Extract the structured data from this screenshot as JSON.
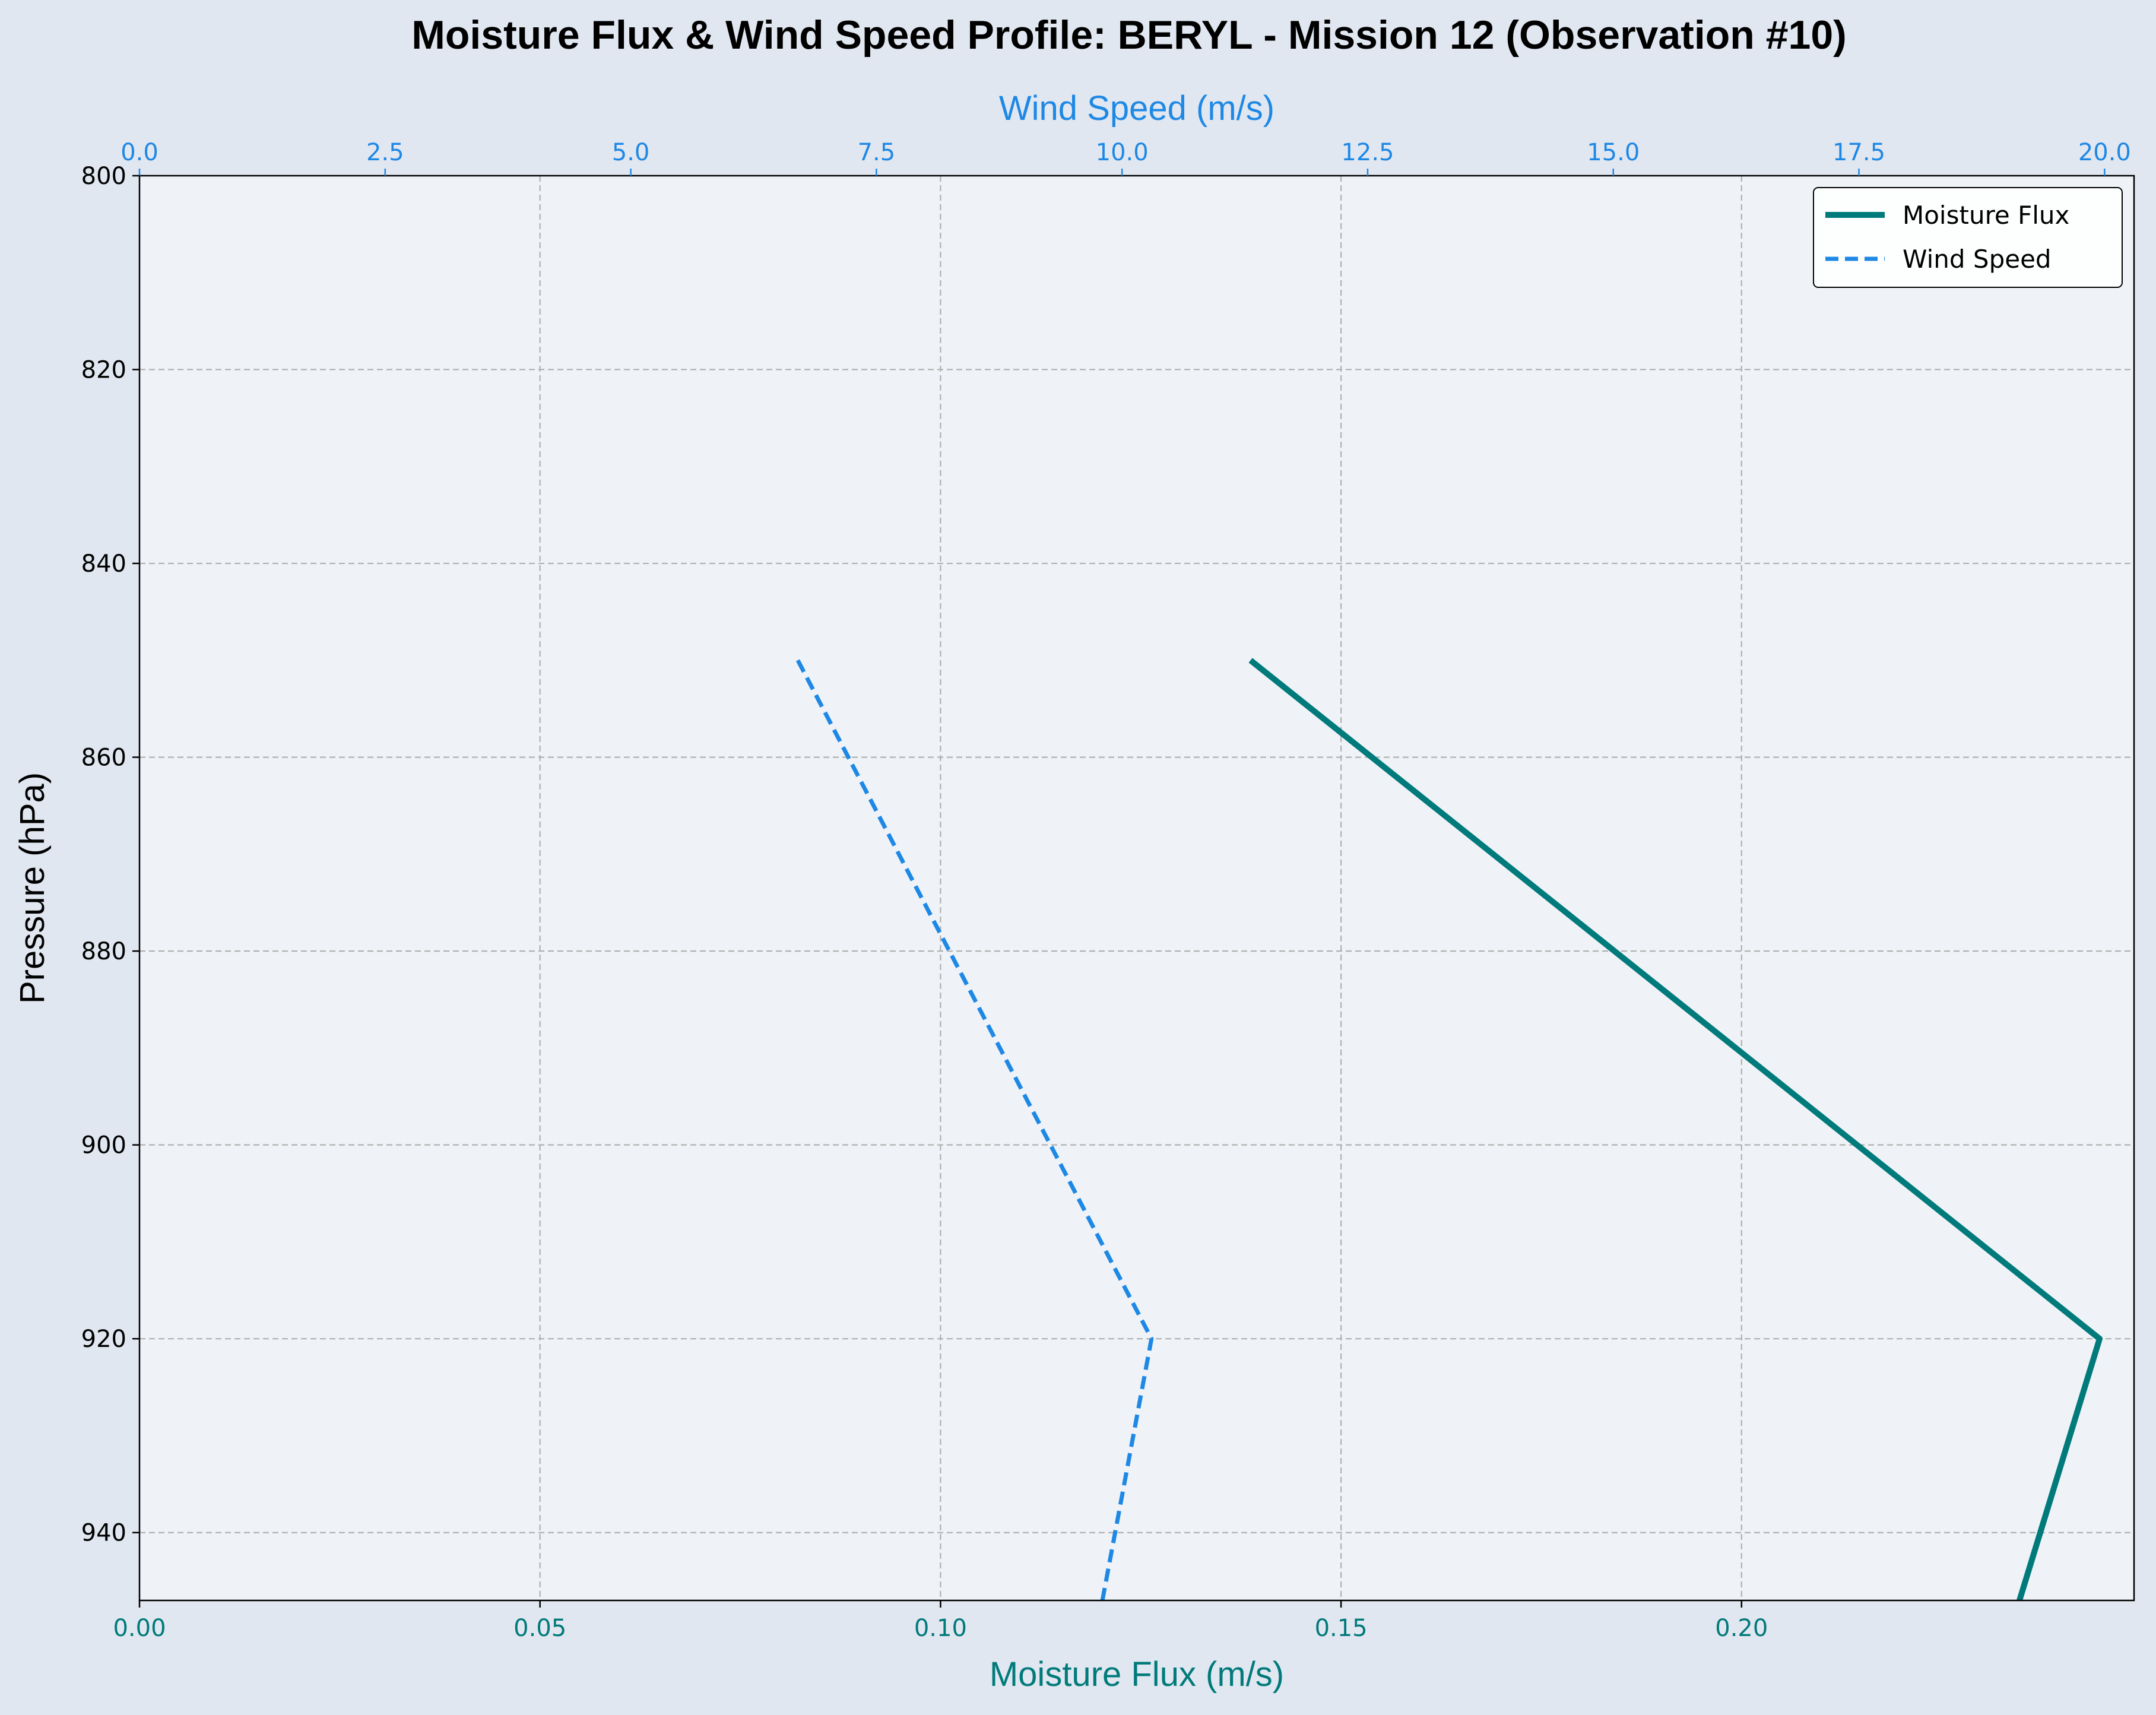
{
  "chart_data": {
    "type": "line",
    "title": "Moisture Flux & Wind Speed Profile: BERYL - Mission 12 (Observation #10)",
    "xlabel_bottom": "Moisture Flux (m/s)",
    "xlabel_top": "Wind Speed (m/s)",
    "ylabel": "Pressure (hPa)",
    "xlim_bottom": [
      0,
      0.249
    ],
    "xlim_top": [
      0,
      20.3
    ],
    "ylim": [
      800,
      947
    ],
    "y_inverted": true,
    "grid": true,
    "legend_position": "upper right",
    "x_ticks_bottom": [
      "0.00",
      "0.05",
      "0.10",
      "0.15",
      "0.20"
    ],
    "x_tick_values_bottom": [
      0,
      0.05,
      0.1,
      0.15,
      0.2
    ],
    "x_ticks_top": [
      "0.0",
      "2.5",
      "5.0",
      "7.5",
      "10.0",
      "12.5",
      "15.0",
      "17.5",
      "20.0"
    ],
    "x_tick_values_top": [
      0,
      2.5,
      5.0,
      7.5,
      10.0,
      12.5,
      15.0,
      17.5,
      20.0
    ],
    "y_ticks": [
      "800",
      "820",
      "840",
      "860",
      "880",
      "900",
      "920",
      "940"
    ],
    "y_tick_values": [
      800,
      820,
      840,
      860,
      880,
      900,
      920,
      940
    ],
    "series": [
      {
        "name": "Moisture Flux",
        "axis": "bottom",
        "color": "#007a7a",
        "style": "solid",
        "pressure": [
          850,
          920,
          947
        ],
        "values": [
          0.1387,
          0.2447,
          0.2347
        ]
      },
      {
        "name": "Wind Speed",
        "axis": "top",
        "color": "#1e88e5",
        "style": "dashed",
        "pressure": [
          850,
          920,
          947
        ],
        "values": [
          6.7,
          10.3,
          9.8
        ]
      }
    ]
  }
}
